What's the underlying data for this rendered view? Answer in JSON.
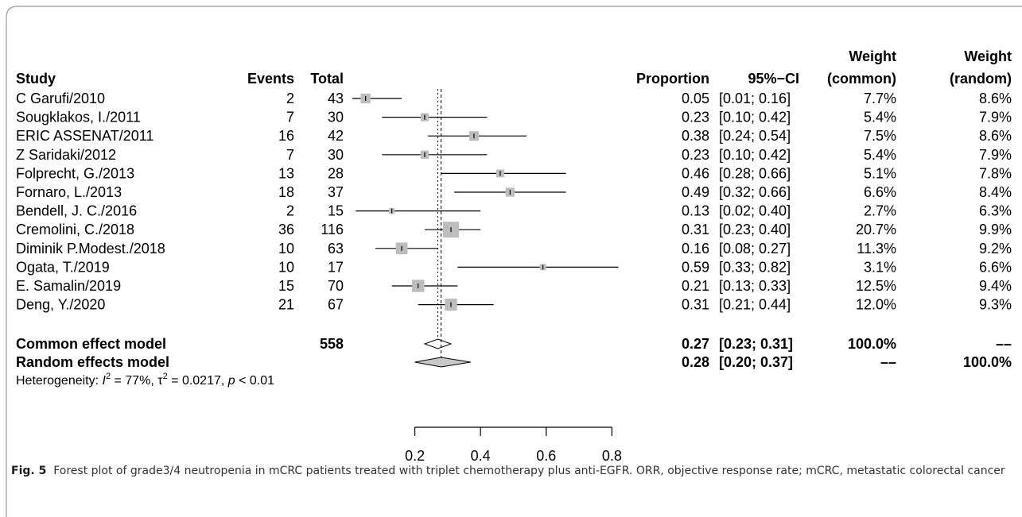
{
  "chart_data": {
    "type": "forest",
    "headers": {
      "study": "Study",
      "events": "Events",
      "total": "Total",
      "proportion": "Proportion",
      "ci": "95%−CI",
      "weight_common": [
        "Weight",
        "(common)"
      ],
      "weight_random": [
        "Weight",
        "(random)"
      ]
    },
    "studies": [
      "C Garufi/2010",
      "Sougklakos, I./2011",
      "ERIC ASSENAT/2011",
      "Z Saridaki/2012",
      "Folprecht, G./2013",
      "Fornaro, L./2013",
      "Bendell, J. C./2016",
      "Cremolini, C./2018",
      "Diminik P.Modest./2018",
      "Ogata, T./2019",
      "E. Samalin/2019",
      "Deng, Y./2020"
    ],
    "events": [
      2,
      7,
      16,
      7,
      13,
      18,
      2,
      36,
      10,
      10,
      15,
      21
    ],
    "totals": [
      43,
      30,
      42,
      30,
      28,
      37,
      15,
      116,
      63,
      17,
      70,
      67
    ],
    "proportions": [
      0.05,
      0.23,
      0.38,
      0.23,
      0.46,
      0.49,
      0.13,
      0.31,
      0.16,
      0.59,
      0.21,
      0.31
    ],
    "ci_low": [
      0.01,
      0.1,
      0.24,
      0.1,
      0.28,
      0.32,
      0.02,
      0.23,
      0.08,
      0.33,
      0.13,
      0.21
    ],
    "ci_high": [
      0.16,
      0.42,
      0.54,
      0.42,
      0.66,
      0.66,
      0.4,
      0.4,
      0.27,
      0.82,
      0.33,
      0.44
    ],
    "ci_labels": [
      "[0.01; 0.16]",
      "[0.10; 0.42]",
      "[0.24; 0.54]",
      "[0.10; 0.42]",
      "[0.28; 0.66]",
      "[0.32; 0.66]",
      "[0.02; 0.40]",
      "[0.23; 0.40]",
      "[0.08; 0.27]",
      "[0.33; 0.82]",
      "[0.13; 0.33]",
      "[0.21; 0.44]"
    ],
    "weight_common": {
      "values": [
        7.7,
        5.4,
        7.5,
        5.4,
        5.1,
        6.6,
        2.7,
        20.7,
        11.3,
        3.1,
        12.5,
        12.0
      ],
      "value_labels": [
        "7.7%",
        "5.4%",
        "7.5%",
        "5.4%",
        "5.1%",
        "6.6%",
        "2.7%",
        "20.7%",
        "11.3%",
        "3.1%",
        "12.5%",
        "12.0%"
      ]
    },
    "weight_random_labels": [
      "8.6%",
      "7.9%",
      "8.6%",
      "7.9%",
      "7.8%",
      "8.4%",
      "6.3%",
      "9.9%",
      "9.2%",
      "6.6%",
      "9.4%",
      "9.3%"
    ],
    "summaries": [
      {
        "name": "Common effect model",
        "total": 558,
        "proportion": 0.27,
        "ci_low": 0.23,
        "ci_high": 0.31,
        "ci_label": "[0.23; 0.31]",
        "weight_common_label": "100.0%",
        "weight_random_label": "––"
      },
      {
        "name": "Random effects model",
        "proportion": 0.28,
        "ci_low": 0.2,
        "ci_high": 0.37,
        "ci_label": "[0.20; 0.37]",
        "weight_common_label": "––",
        "weight_random_label": "100.0%"
      }
    ],
    "heterogeneity": [
      "Heterogeneity: ",
      "I",
      "2",
      " = 77%, ",
      "τ",
      "2",
      " = 0.0217, ",
      "p",
      " < 0.01"
    ],
    "xlim": [
      0,
      0.85
    ],
    "xticks": [
      0.2,
      0.4,
      0.6,
      0.8
    ],
    "square_color": "#bdbdbd",
    "diamond_color": "#c8c8c8",
    "caption": {
      "label": "Fig. 5",
      "text": "Forest plot of grade3/4 neutropenia in mCRC patients treated with triplet chemotherapy plus anti-EGFR. ORR, objective response rate; mCRC, metastatic colorectal cancer"
    }
  }
}
